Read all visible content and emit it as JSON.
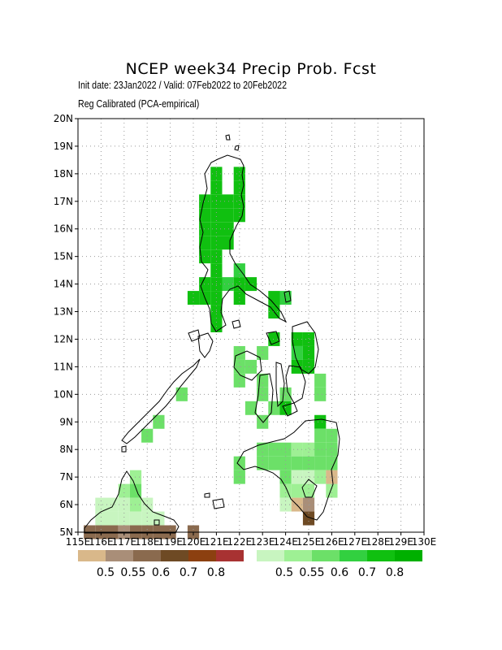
{
  "header": {
    "title": "NCEP week34 Precip Prob. Fcst",
    "line1": "Init date: 23Jan2022 / Valid: 07Feb2022 to 20Feb2022",
    "line2": "Reg Calibrated (PCA-empirical)"
  },
  "axes": {
    "lat_labels": [
      "5N",
      "6N",
      "7N",
      "8N",
      "9N",
      "10N",
      "11N",
      "12N",
      "13N",
      "14N",
      "15N",
      "16N",
      "17N",
      "18N",
      "19N",
      "20N"
    ],
    "lon_labels": [
      "115E",
      "116E",
      "117E",
      "118E",
      "119E",
      "120E",
      "121E",
      "122E",
      "123E",
      "124E",
      "125E",
      "126E",
      "127E",
      "128E",
      "129E",
      "130E"
    ],
    "lon_range": [
      115,
      130
    ],
    "lat_range": [
      5,
      20
    ],
    "grid": true
  },
  "legend_below": {
    "colors": [
      "#d9b88a",
      "#a98e78",
      "#8a6a4e",
      "#6e4a24",
      "#8c4010",
      "#a83232"
    ],
    "labels": [
      "0.5",
      "0.55",
      "0.6",
      "0.7",
      "0.8"
    ]
  },
  "legend_above": {
    "colors": [
      "#c8f5c0",
      "#9ef094",
      "#6ce068",
      "#32d040",
      "#10c010",
      "#00b000"
    ],
    "labels": [
      "0.5",
      "0.55",
      "0.6",
      "0.7",
      "0.8"
    ]
  },
  "field": {
    "above_cells": [
      [
        121,
        18,
        "#10c010"
      ],
      [
        122,
        18,
        "#10c010"
      ],
      [
        121,
        17.5,
        "#10c010"
      ],
      [
        122,
        17.5,
        "#10c010"
      ],
      [
        120.5,
        17,
        "#10c010"
      ],
      [
        121,
        17,
        "#10c010"
      ],
      [
        121.5,
        17,
        "#10c010"
      ],
      [
        122,
        17,
        "#10c010"
      ],
      [
        120.5,
        16.5,
        "#10c010"
      ],
      [
        121,
        16.5,
        "#10c010"
      ],
      [
        121.5,
        16.5,
        "#10c010"
      ],
      [
        122,
        16.5,
        "#10c010"
      ],
      [
        120.5,
        16,
        "#10c010"
      ],
      [
        121,
        16,
        "#10c010"
      ],
      [
        121.5,
        16,
        "#10c010"
      ],
      [
        120.5,
        15.5,
        "#10c010"
      ],
      [
        121,
        15.5,
        "#10c010"
      ],
      [
        121.5,
        15.5,
        "#10c010"
      ],
      [
        120.5,
        15,
        "#10c010"
      ],
      [
        121,
        15,
        "#10c010"
      ],
      [
        121,
        14.5,
        "#10c010"
      ],
      [
        122,
        14.5,
        "#32d040"
      ],
      [
        120.5,
        14,
        "#10c010"
      ],
      [
        121,
        14,
        "#10c010"
      ],
      [
        121.5,
        14,
        "#32d040"
      ],
      [
        122,
        14,
        "#10c010"
      ],
      [
        122.5,
        14,
        "#10c010"
      ],
      [
        120,
        13.5,
        "#10c010"
      ],
      [
        120.5,
        13.5,
        "#10c010"
      ],
      [
        121,
        13.5,
        "#10c010"
      ],
      [
        122,
        13.5,
        "#10c010"
      ],
      [
        123.5,
        13.5,
        "#10c010"
      ],
      [
        124,
        13.5,
        "#32d040"
      ],
      [
        121,
        13,
        "#10c010"
      ],
      [
        123.5,
        13,
        "#10c010"
      ],
      [
        121,
        12.5,
        "#10c010"
      ],
      [
        123.5,
        12,
        "#10c010"
      ],
      [
        124.5,
        12,
        "#10c010"
      ],
      [
        125,
        12,
        "#10c010"
      ],
      [
        122,
        11.5,
        "#6ce068"
      ],
      [
        123,
        11.5,
        "#6ce068"
      ],
      [
        124.5,
        11.5,
        "#32d040"
      ],
      [
        125,
        11.5,
        "#10c010"
      ],
      [
        122,
        11,
        "#6ce068"
      ],
      [
        122.5,
        11,
        "#6ce068"
      ],
      [
        124.5,
        11,
        "#10c010"
      ],
      [
        125,
        11,
        "#10c010"
      ],
      [
        122,
        10.5,
        "#6ce068"
      ],
      [
        123,
        10.5,
        "#6ce068"
      ],
      [
        125.5,
        10.5,
        "#6ce068"
      ],
      [
        119.5,
        10,
        "#6ce068"
      ],
      [
        123,
        10,
        "#6ce068"
      ],
      [
        124,
        10,
        "#6ce068"
      ],
      [
        125.5,
        10,
        "#6ce068"
      ],
      [
        122.5,
        9.5,
        "#6ce068"
      ],
      [
        123.5,
        9.5,
        "#6ce068"
      ],
      [
        124,
        9.5,
        "#10c010"
      ],
      [
        118.5,
        9,
        "#6ce068"
      ],
      [
        123,
        9,
        "#6ce068"
      ],
      [
        125.5,
        9,
        "#10c010"
      ],
      [
        118,
        8.5,
        "#6ce068"
      ],
      [
        125.5,
        8.5,
        "#6ce068"
      ],
      [
        126,
        8.5,
        "#6ce068"
      ],
      [
        123,
        8,
        "#6ce068"
      ],
      [
        123.5,
        8,
        "#6ce068"
      ],
      [
        124,
        8,
        "#6ce068"
      ],
      [
        124.5,
        8,
        "#9ef094"
      ],
      [
        125,
        8,
        "#9ef094"
      ],
      [
        125.5,
        8,
        "#6ce068"
      ],
      [
        126,
        8,
        "#6ce068"
      ],
      [
        122,
        7.5,
        "#6ce068"
      ],
      [
        123,
        7.5,
        "#6ce068"
      ],
      [
        123.5,
        7.5,
        "#6ce068"
      ],
      [
        124,
        7.5,
        "#6ce068"
      ],
      [
        124.5,
        7.5,
        "#6ce068"
      ],
      [
        125,
        7.5,
        "#6ce068"
      ],
      [
        125.5,
        7.5,
        "#6ce068"
      ],
      [
        126,
        7.5,
        "#6ce068"
      ],
      [
        117.5,
        7,
        "#9ef094"
      ],
      [
        122,
        7,
        "#6ce068"
      ],
      [
        124,
        7,
        "#6ce068"
      ],
      [
        124.5,
        7,
        "#c8f5c0"
      ],
      [
        125,
        7,
        "#c8f5c0"
      ],
      [
        125.5,
        7,
        "#9ef094"
      ],
      [
        126,
        7,
        "#9ef094"
      ],
      [
        117,
        6.5,
        "#9ef094"
      ],
      [
        117.5,
        6.5,
        "#6ce068"
      ],
      [
        124,
        6.5,
        "#9ef094"
      ],
      [
        124.5,
        6.5,
        "#9ef094"
      ],
      [
        125,
        6.5,
        "#9ef094"
      ],
      [
        126,
        6.5,
        "#9ef094"
      ],
      [
        116,
        6,
        "#c8f5c0"
      ],
      [
        116.5,
        6,
        "#c8f5c0"
      ],
      [
        117,
        6,
        "#c8f5c0"
      ],
      [
        117.5,
        6,
        "#9ef094"
      ],
      [
        118,
        6,
        "#c8f5c0"
      ],
      [
        124,
        6,
        "#c8f5c0"
      ],
      [
        116,
        5.5,
        "#c8f5c0"
      ],
      [
        116.5,
        5.5,
        "#c8f5c0"
      ],
      [
        117,
        5.5,
        "#c8f5c0"
      ],
      [
        117.5,
        5.5,
        "#c8f5c0"
      ],
      [
        118,
        5.5,
        "#c8f5c0"
      ],
      [
        118.5,
        5.5,
        "#c8f5c0"
      ]
    ],
    "below_cells": [
      [
        115.5,
        5,
        "#8a6a4e"
      ],
      [
        116,
        5,
        "#8a6a4e"
      ],
      [
        116.5,
        5,
        "#8a6a4e"
      ],
      [
        117,
        5,
        "#a98e78"
      ],
      [
        117.5,
        5,
        "#8a6a4e"
      ],
      [
        118,
        5,
        "#8a6a4e"
      ],
      [
        118.5,
        5,
        "#8a6a4e"
      ],
      [
        119,
        5,
        "#8a6a4e"
      ],
      [
        120,
        5,
        "#8a6a4e"
      ],
      [
        125,
        5.5,
        "#6e4a24"
      ],
      [
        124.5,
        6,
        "#d9b88a"
      ],
      [
        125,
        6,
        "#a98e78"
      ],
      [
        126,
        7,
        "#d9b88a"
      ]
    ]
  }
}
